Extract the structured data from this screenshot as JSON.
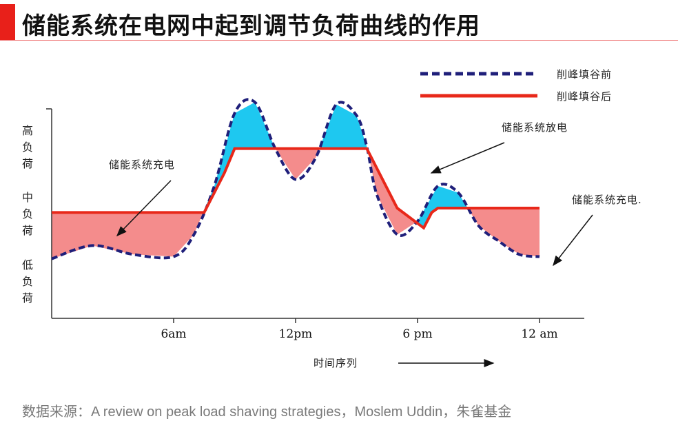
{
  "header": {
    "title": "储能系统在电网中起到调节负荷曲线的作用",
    "accent_color": "#e8201a"
  },
  "source": "数据来源：A review on peak load shaving strategies，Moslem Uddin，朱雀基金",
  "chart_data": {
    "type": "line",
    "x_ticks": [
      "6am",
      "12pm",
      "6 pm",
      "12 am"
    ],
    "x_axis_label": "时间序列",
    "y_axis_labels": [
      "高负荷",
      "中负荷",
      "低负荷"
    ],
    "series": [
      {
        "name": "削峰填谷前",
        "style": "dashed",
        "color": "#1f1f7a",
        "x": [
          0,
          2,
          4,
          6,
          7,
          8,
          9,
          10,
          11,
          12,
          13,
          14,
          15,
          15.5,
          16,
          17,
          18,
          19,
          20,
          21,
          22,
          23,
          24
        ],
        "y": [
          0.27,
          0.33,
          0.29,
          0.28,
          0.38,
          0.6,
          0.93,
          0.98,
          0.77,
          0.63,
          0.73,
          0.97,
          0.92,
          0.78,
          0.56,
          0.38,
          0.44,
          0.6,
          0.57,
          0.42,
          0.35,
          0.29,
          0.28
        ]
      },
      {
        "name": "削峰填谷后",
        "style": "solid",
        "color": "#e8281a",
        "x": [
          0,
          6,
          7.5,
          8.5,
          9,
          12,
          15.5,
          17,
          18.3,
          18.7,
          19,
          20,
          24
        ],
        "y": [
          0.48,
          0.48,
          0.48,
          0.66,
          0.77,
          0.77,
          0.77,
          0.5,
          0.41,
          0.48,
          0.5,
          0.5,
          0.5
        ]
      }
    ],
    "fills": [
      {
        "meaning": "储能系统充电",
        "color": "#f48c8c"
      },
      {
        "meaning": "储能系统放电",
        "color": "#1ec8f0"
      }
    ],
    "annotations": [
      "储能系统充电",
      "储能系统放电",
      "储能系统充电."
    ],
    "colors": {
      "charge_fill": "#f48c8c",
      "discharge_fill": "#1ec8f0",
      "axis": "#333333"
    }
  }
}
